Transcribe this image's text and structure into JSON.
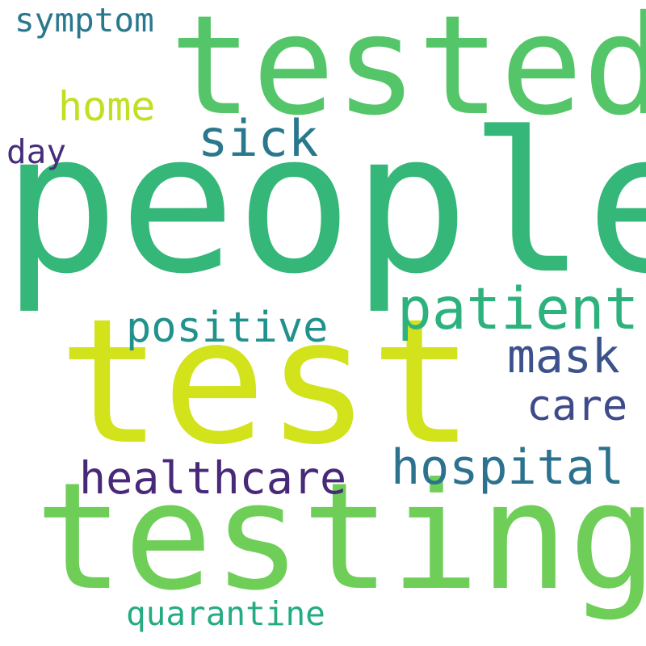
{
  "word_cloud": {
    "background": "#ffffff",
    "words": {
      "people": {
        "text": "people",
        "color": "#35b779"
      },
      "test": {
        "text": "test",
        "color": "#d2e21b"
      },
      "testing": {
        "text": "testing",
        "color": "#6ece58"
      },
      "tested": {
        "text": "tested",
        "color": "#54c568"
      },
      "patient": {
        "text": "patient",
        "color": "#2db27d"
      },
      "hospital": {
        "text": "hospital",
        "color": "#2c728e"
      },
      "sick": {
        "text": "sick",
        "color": "#2a788e"
      },
      "mask": {
        "text": "mask",
        "color": "#3b528b"
      },
      "healthcare": {
        "text": "healthcare",
        "color": "#482878"
      },
      "care": {
        "text": "care",
        "color": "#3e4a89"
      },
      "positive": {
        "text": "positive",
        "color": "#21918c"
      },
      "home": {
        "text": "home",
        "color": "#c2df23"
      },
      "symptom": {
        "text": "symptom",
        "color": "#2a788e"
      },
      "quarantine": {
        "text": "quarantine",
        "color": "#25ab82"
      },
      "day": {
        "text": "day",
        "color": "#472d7b"
      }
    }
  }
}
